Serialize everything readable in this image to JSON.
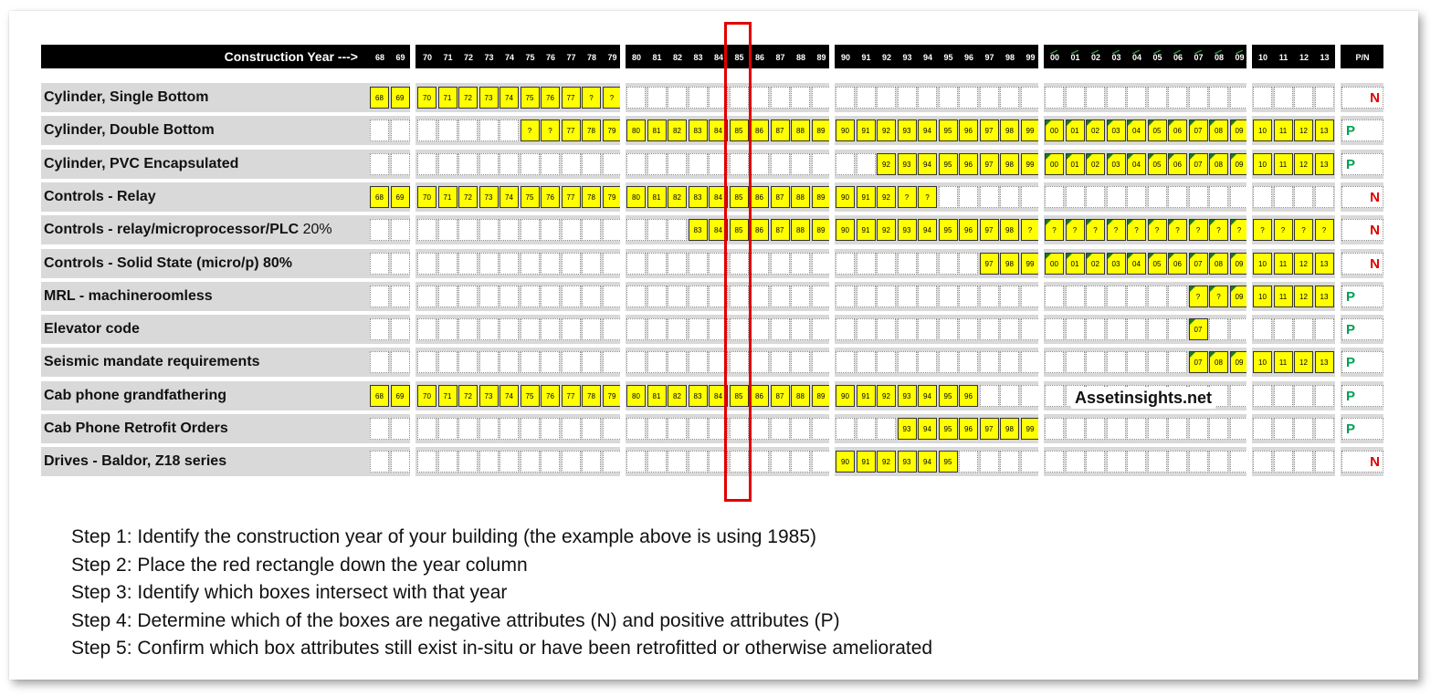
{
  "header": {
    "axis_label": "Construction Year --->",
    "pn_label": "P/N"
  },
  "chart_data": {
    "type": "table",
    "years": [
      "68",
      "69",
      "70",
      "71",
      "72",
      "73",
      "74",
      "75",
      "76",
      "77",
      "78",
      "79",
      "80",
      "81",
      "82",
      "83",
      "84",
      "85",
      "86",
      "87",
      "88",
      "89",
      "90",
      "91",
      "92",
      "93",
      "94",
      "95",
      "96",
      "97",
      "98",
      "99",
      "00",
      "01",
      "02",
      "03",
      "04",
      "05",
      "06",
      "07",
      "08",
      "09",
      "10",
      "11",
      "12",
      "13"
    ],
    "selected_year": "85",
    "rows": [
      {
        "label": "Cylinder, Single Bottom",
        "pct": "",
        "pn": "N",
        "cells": {
          "68": "68",
          "69": "69",
          "70": "70",
          "71": "71",
          "72": "72",
          "73": "73",
          "74": "74",
          "75": "75",
          "76": "76",
          "77": "77",
          "78": "?",
          "79": "?"
        },
        "marked": []
      },
      {
        "label": "Cylinder, Double Bottom",
        "pct": "",
        "pn": "P",
        "cells": {
          "75": "?",
          "76": "?",
          "77": "77",
          "78": "78",
          "79": "79",
          "80": "80",
          "81": "81",
          "82": "82",
          "83": "83",
          "84": "84",
          "85": "85",
          "86": "86",
          "87": "87",
          "88": "88",
          "89": "89",
          "90": "90",
          "91": "91",
          "92": "92",
          "93": "93",
          "94": "94",
          "95": "95",
          "96": "96",
          "97": "97",
          "98": "98",
          "99": "99",
          "00": "00",
          "01": "01",
          "02": "02",
          "03": "03",
          "04": "04",
          "05": "05",
          "06": "06",
          "07": "07",
          "08": "08",
          "09": "09",
          "10": "10",
          "11": "11",
          "12": "12",
          "13": "13"
        },
        "marked": [
          "00",
          "01",
          "02",
          "03",
          "04",
          "05",
          "06",
          "07",
          "08",
          "09"
        ]
      },
      {
        "label": "Cylinder, PVC Encapsulated",
        "pct": "",
        "pn": "P",
        "cells": {
          "92": "92",
          "93": "93",
          "94": "94",
          "95": "95",
          "96": "96",
          "97": "97",
          "98": "98",
          "99": "99",
          "00": "00",
          "01": "01",
          "02": "02",
          "03": "03",
          "04": "04",
          "05": "05",
          "06": "06",
          "07": "07",
          "08": "08",
          "09": "09",
          "10": "10",
          "11": "11",
          "12": "12",
          "13": "13"
        },
        "marked": [
          "00",
          "01",
          "02",
          "03",
          "04",
          "05",
          "06",
          "07",
          "08",
          "09"
        ]
      },
      {
        "label": "Controls - Relay",
        "pct": "",
        "pn": "N",
        "cells": {
          "68": "68",
          "69": "69",
          "70": "70",
          "71": "71",
          "72": "72",
          "73": "73",
          "74": "74",
          "75": "75",
          "76": "76",
          "77": "77",
          "78": "78",
          "79": "79",
          "80": "80",
          "81": "81",
          "82": "82",
          "83": "83",
          "84": "84",
          "85": "85",
          "86": "86",
          "87": "87",
          "88": "88",
          "89": "89",
          "90": "90",
          "91": "91",
          "92": "92",
          "93": "?",
          "94": "?"
        },
        "marked": []
      },
      {
        "label": "Controls - relay/microprocessor/PLC",
        "pct": "20%",
        "pn": "N",
        "cells": {
          "83": "83",
          "84": "84",
          "85": "85",
          "86": "86",
          "87": "87",
          "88": "88",
          "89": "89",
          "90": "90",
          "91": "91",
          "92": "92",
          "93": "93",
          "94": "94",
          "95": "95",
          "96": "96",
          "97": "97",
          "98": "98",
          "99": "?",
          "00": "?",
          "01": "?",
          "02": "?",
          "03": "?",
          "04": "?",
          "05": "?",
          "06": "?",
          "07": "?",
          "08": "?",
          "09": "?",
          "10": "?",
          "11": "?",
          "12": "?",
          "13": "?"
        },
        "marked": [
          "00",
          "01",
          "02",
          "03",
          "04",
          "05",
          "06",
          "07",
          "08",
          "09"
        ]
      },
      {
        "label": "Controls - Solid State (micro/p) 80%",
        "pct": "",
        "pn": "N",
        "cells": {
          "97": "97",
          "98": "98",
          "99": "99",
          "00": "00",
          "01": "01",
          "02": "02",
          "03": "03",
          "04": "04",
          "05": "05",
          "06": "06",
          "07": "07",
          "08": "08",
          "09": "09",
          "10": "10",
          "11": "11",
          "12": "12",
          "13": "13"
        },
        "marked": [
          "00",
          "01",
          "02",
          "03",
          "04",
          "05",
          "06",
          "07",
          "08",
          "09"
        ]
      },
      {
        "label": "MRL - machineroomless",
        "pct": "",
        "pn": "P",
        "cells": {
          "07": "?",
          "08": "?",
          "09": "09",
          "10": "10",
          "11": "11",
          "12": "12",
          "13": "13"
        },
        "marked": [
          "07",
          "08",
          "09"
        ]
      },
      {
        "label": "Elevator code",
        "pct": "",
        "pn": "P",
        "cells": {
          "07": "07"
        },
        "marked": [
          "07"
        ]
      },
      {
        "label": "Seismic mandate requirements",
        "pct": "",
        "pn": "P",
        "cells": {
          "07": "07",
          "08": "08",
          "09": "09",
          "10": "10",
          "11": "11",
          "12": "12",
          "13": "13"
        },
        "marked": [
          "07",
          "08",
          "09"
        ]
      },
      {
        "label": "Cab phone grandfathering",
        "pct": "",
        "pn": "P",
        "cells": {
          "68": "68",
          "69": "69",
          "70": "70",
          "71": "71",
          "72": "72",
          "73": "73",
          "74": "74",
          "75": "75",
          "76": "76",
          "77": "77",
          "78": "78",
          "79": "79",
          "80": "80",
          "81": "81",
          "82": "82",
          "83": "83",
          "84": "84",
          "85": "85",
          "86": "86",
          "87": "87",
          "88": "88",
          "89": "89",
          "90": "90",
          "91": "91",
          "92": "92",
          "93": "93",
          "94": "94",
          "95": "95",
          "96": "96"
        },
        "marked": []
      },
      {
        "label": "Cab Phone Retrofit Orders",
        "pct": "",
        "pn": "P",
        "cells": {
          "93": "93",
          "94": "94",
          "95": "95",
          "96": "96",
          "97": "97",
          "98": "98",
          "99": "99"
        },
        "marked": []
      },
      {
        "label": "Drives - Baldor, Z18 series",
        "pct": "",
        "pn": "N",
        "cells": {
          "90": "90",
          "91": "91",
          "92": "92",
          "93": "93",
          "94": "94",
          "95": "95"
        },
        "marked": []
      }
    ]
  },
  "watermark": "Assetinsights.net",
  "steps": [
    "Step 1:  Identify the construction year  of your building (the example above is using 1985)",
    "Step 2:  Place the red rectangle down the year column",
    "Step 3:  Identify which boxes intersect with that year",
    "Step 4:  Determine which of the boxes are negative attributes (N) and positive attributes (P)",
    "Step 5:  Confirm which box attributes still exist in-situ or have been retrofitted or otherwise ameliorated"
  ],
  "colors": {
    "highlight": "#ffff00",
    "negative": "#e00000",
    "positive": "#00a050",
    "selection": "#e00000"
  }
}
